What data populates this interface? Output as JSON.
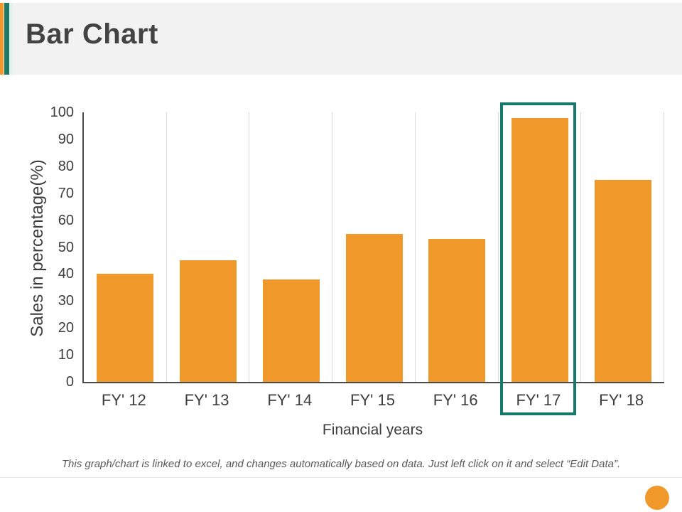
{
  "slide": {
    "title": "Bar Chart",
    "footnote": "This graph/chart is linked to excel, and changes automatically based on data. Just left click on it and select “Edit Data”.",
    "accent_colors": {
      "orange": "#F0992A",
      "teal": "#1E7A64",
      "mint": "#E4F2ED",
      "header_bg": "#F2F2F2",
      "title_text": "#434343"
    }
  },
  "chart_data": {
    "type": "bar",
    "title": "",
    "categories": [
      "FY' 12",
      "FY' 13",
      "FY' 14",
      "FY' 15",
      "FY' 16",
      "FY' 17",
      "FY' 18"
    ],
    "values": [
      40,
      45,
      38,
      55,
      53,
      98,
      75
    ],
    "xlabel": "Financial years",
    "ylabel": "Sales in percentage(%)",
    "ylim": [
      0,
      100
    ],
    "ytick_step": 10,
    "ytick_labels": [
      "0",
      "10",
      "20",
      "30",
      "40",
      "50",
      "60",
      "70",
      "80",
      "90",
      "100"
    ],
    "bar_color": "#F0992A",
    "axis_line_color": "#4a4a4a",
    "gridline_color": "#D9D9D9",
    "gridlines": "vertical category separators only",
    "legend": "none",
    "highlighted_category": "FY' 17",
    "highlight_border_color": "#17796B"
  }
}
